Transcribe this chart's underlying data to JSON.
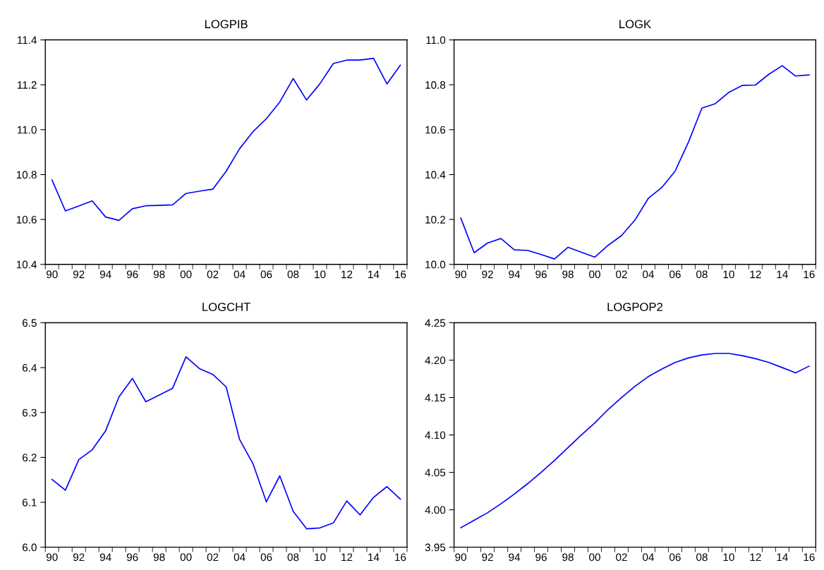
{
  "chart_data": [
    {
      "type": "line",
      "title": "LOGPIB",
      "x": [
        1990,
        1991,
        1992,
        1993,
        1994,
        1995,
        1996,
        1997,
        1998,
        1999,
        2000,
        2001,
        2002,
        2003,
        2004,
        2005,
        2006,
        2007,
        2008,
        2009,
        2010,
        2011,
        2012,
        2013,
        2014,
        2015,
        2016
      ],
      "series": [
        {
          "color": "#0000ff",
          "values": [
            10.776,
            10.638,
            10.66,
            10.683,
            10.611,
            10.596,
            10.648,
            10.661,
            10.663,
            10.665,
            10.716,
            10.726,
            10.735,
            10.815,
            10.915,
            10.991,
            11.049,
            11.123,
            11.228,
            11.132,
            11.205,
            11.295,
            11.31,
            11.31,
            11.318,
            11.204,
            11.287
          ]
        }
      ],
      "xlim": [
        1989.5,
        2016.5
      ],
      "xticks": [
        {
          "value": 1990,
          "label": "90"
        },
        {
          "value": 1992,
          "label": "92"
        },
        {
          "value": 1994,
          "label": "94"
        },
        {
          "value": 1996,
          "label": "96"
        },
        {
          "value": 1998,
          "label": "98"
        },
        {
          "value": 2000,
          "label": "00"
        },
        {
          "value": 2002,
          "label": "02"
        },
        {
          "value": 2004,
          "label": "04"
        },
        {
          "value": 2006,
          "label": "06"
        },
        {
          "value": 2008,
          "label": "08"
        },
        {
          "value": 2010,
          "label": "10"
        },
        {
          "value": 2012,
          "label": "12"
        },
        {
          "value": 2014,
          "label": "14"
        },
        {
          "value": 2016,
          "label": "16"
        }
      ],
      "ylim": [
        10.4,
        11.4
      ],
      "yticks": [
        {
          "value": 10.4,
          "label": "10.4"
        },
        {
          "value": 10.6,
          "label": "10.6"
        },
        {
          "value": 10.8,
          "label": "10.8"
        },
        {
          "value": 11.0,
          "label": "11.0"
        },
        {
          "value": 11.2,
          "label": "11.2"
        },
        {
          "value": 11.4,
          "label": "11.4"
        }
      ],
      "grid": false
    },
    {
      "type": "line",
      "title": "LOGK",
      "x": [
        1990,
        1991,
        1992,
        1993,
        1994,
        1995,
        1996,
        1997,
        1998,
        1999,
        2000,
        2001,
        2002,
        2003,
        2004,
        2005,
        2006,
        2007,
        2008,
        2009,
        2010,
        2011,
        2012,
        2013,
        2014,
        2015,
        2016
      ],
      "series": [
        {
          "color": "#0000ff",
          "values": [
            10.207,
            10.052,
            10.095,
            10.115,
            10.065,
            10.062,
            10.044,
            10.024,
            10.076,
            10.054,
            10.032,
            10.085,
            10.128,
            10.197,
            10.294,
            10.342,
            10.415,
            10.545,
            10.696,
            10.716,
            10.766,
            10.797,
            10.799,
            10.847,
            10.885,
            10.839,
            10.844
          ]
        }
      ],
      "xlim": [
        1989.5,
        2016.5
      ],
      "xticks": [
        {
          "value": 1990,
          "label": "90"
        },
        {
          "value": 1992,
          "label": "92"
        },
        {
          "value": 1994,
          "label": "94"
        },
        {
          "value": 1996,
          "label": "96"
        },
        {
          "value": 1998,
          "label": "98"
        },
        {
          "value": 2000,
          "label": "00"
        },
        {
          "value": 2002,
          "label": "02"
        },
        {
          "value": 2004,
          "label": "04"
        },
        {
          "value": 2006,
          "label": "06"
        },
        {
          "value": 2008,
          "label": "08"
        },
        {
          "value": 2010,
          "label": "10"
        },
        {
          "value": 2012,
          "label": "12"
        },
        {
          "value": 2014,
          "label": "14"
        },
        {
          "value": 2016,
          "label": "16"
        }
      ],
      "ylim": [
        10.0,
        11.0
      ],
      "yticks": [
        {
          "value": 10.0,
          "label": "10.0"
        },
        {
          "value": 10.2,
          "label": "10.2"
        },
        {
          "value": 10.4,
          "label": "10.4"
        },
        {
          "value": 10.6,
          "label": "10.6"
        },
        {
          "value": 10.8,
          "label": "10.8"
        },
        {
          "value": 11.0,
          "label": "11.0"
        }
      ],
      "grid": false
    },
    {
      "type": "line",
      "title": "LOGCHT",
      "x": [
        1990,
        1991,
        1992,
        1993,
        1994,
        1995,
        1996,
        1997,
        1998,
        1999,
        2000,
        2001,
        2002,
        2003,
        2004,
        2005,
        2006,
        2007,
        2008,
        2009,
        2010,
        2011,
        2012,
        2013,
        2014,
        2015,
        2016
      ],
      "series": [
        {
          "color": "#0000ff",
          "values": [
            6.151,
            6.127,
            6.195,
            6.217,
            6.259,
            6.335,
            6.376,
            6.324,
            6.339,
            6.354,
            6.424,
            6.398,
            6.385,
            6.357,
            6.24,
            6.186,
            6.101,
            6.159,
            6.08,
            6.041,
            6.043,
            6.054,
            6.103,
            6.072,
            6.111,
            6.135,
            6.107
          ]
        }
      ],
      "xlim": [
        1989.5,
        2016.5
      ],
      "xticks": [
        {
          "value": 1990,
          "label": "90"
        },
        {
          "value": 1992,
          "label": "92"
        },
        {
          "value": 1994,
          "label": "94"
        },
        {
          "value": 1996,
          "label": "96"
        },
        {
          "value": 1998,
          "label": "98"
        },
        {
          "value": 2000,
          "label": "00"
        },
        {
          "value": 2002,
          "label": "02"
        },
        {
          "value": 2004,
          "label": "04"
        },
        {
          "value": 2006,
          "label": "06"
        },
        {
          "value": 2008,
          "label": "08"
        },
        {
          "value": 2010,
          "label": "10"
        },
        {
          "value": 2012,
          "label": "12"
        },
        {
          "value": 2014,
          "label": "14"
        },
        {
          "value": 2016,
          "label": "16"
        }
      ],
      "ylim": [
        6.0,
        6.5
      ],
      "yticks": [
        {
          "value": 6.0,
          "label": "6.0"
        },
        {
          "value": 6.1,
          "label": "6.1"
        },
        {
          "value": 6.2,
          "label": "6.2"
        },
        {
          "value": 6.3,
          "label": "6.3"
        },
        {
          "value": 6.4,
          "label": "6.4"
        },
        {
          "value": 6.5,
          "label": "6.5"
        }
      ],
      "grid": false
    },
    {
      "type": "line",
      "title": "LOGPOP2",
      "x": [
        1990,
        1991,
        1992,
        1993,
        1994,
        1995,
        1996,
        1997,
        1998,
        1999,
        2000,
        2001,
        2002,
        2003,
        2004,
        2005,
        2006,
        2007,
        2008,
        2009,
        2010,
        2011,
        2012,
        2013,
        2014,
        2015,
        2016
      ],
      "series": [
        {
          "color": "#0000ff",
          "values": [
            3.976,
            3.986,
            3.996,
            4.008,
            4.021,
            4.035,
            4.05,
            4.066,
            4.083,
            4.1,
            4.116,
            4.134,
            4.15,
            4.165,
            4.178,
            4.188,
            4.197,
            4.203,
            4.207,
            4.209,
            4.209,
            4.206,
            4.202,
            4.197,
            4.19,
            4.183,
            4.192
          ]
        }
      ],
      "xlim": [
        1989.5,
        2016.5
      ],
      "xticks": [
        {
          "value": 1990,
          "label": "90"
        },
        {
          "value": 1992,
          "label": "92"
        },
        {
          "value": 1994,
          "label": "94"
        },
        {
          "value": 1996,
          "label": "96"
        },
        {
          "value": 1998,
          "label": "98"
        },
        {
          "value": 2000,
          "label": "00"
        },
        {
          "value": 2002,
          "label": "02"
        },
        {
          "value": 2004,
          "label": "04"
        },
        {
          "value": 2006,
          "label": "06"
        },
        {
          "value": 2008,
          "label": "08"
        },
        {
          "value": 2010,
          "label": "10"
        },
        {
          "value": 2012,
          "label": "12"
        },
        {
          "value": 2014,
          "label": "14"
        },
        {
          "value": 2016,
          "label": "16"
        }
      ],
      "ylim": [
        3.95,
        4.25
      ],
      "yticks": [
        {
          "value": 3.95,
          "label": "3.95"
        },
        {
          "value": 4.0,
          "label": "4.00"
        },
        {
          "value": 4.05,
          "label": "4.05"
        },
        {
          "value": 4.1,
          "label": "4.10"
        },
        {
          "value": 4.15,
          "label": "4.15"
        },
        {
          "value": 4.2,
          "label": "4.20"
        },
        {
          "value": 4.25,
          "label": "4.25"
        }
      ],
      "grid": false
    }
  ]
}
